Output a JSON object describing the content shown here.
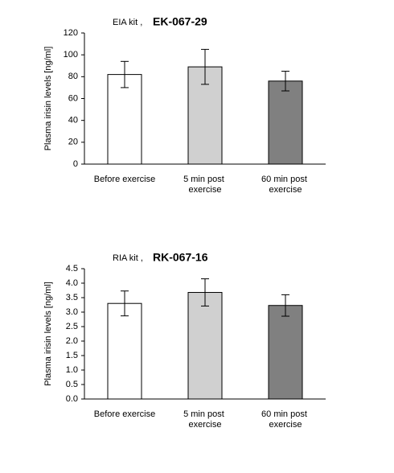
{
  "chart_data": [
    {
      "type": "bar",
      "title": "EIA kit ,",
      "subtitle": "EK-067-29",
      "y_label": "Plasma  irisin levels  [ng/ml]",
      "categories": [
        "Before exercise",
        "5 min post exercise",
        "60 min post exercise"
      ],
      "values": [
        82,
        89,
        76
      ],
      "errors": [
        12,
        16,
        9
      ],
      "colors": [
        "#ffffff",
        "#d0d0d0",
        "#808080"
      ],
      "ylim": [
        0,
        120
      ],
      "yticks": [
        0,
        20,
        40,
        60,
        80,
        100,
        120
      ]
    },
    {
      "type": "bar",
      "title": "RIA kit ,",
      "subtitle": "RK-067-16",
      "y_label": "Plasma  irisin levels  [ng/ml]",
      "categories": [
        "Before exercise",
        "5 min post exercise",
        "60 min post exercise"
      ],
      "values": [
        3.3,
        3.68,
        3.23
      ],
      "errors": [
        0.43,
        0.47,
        0.37
      ],
      "colors": [
        "#ffffff",
        "#d0d0d0",
        "#808080"
      ],
      "ylim": [
        0,
        4.5
      ],
      "yticks": [
        {
          "value": 0,
          "label": "0.0"
        },
        0.5,
        {
          "value": 1,
          "label": "1.0"
        },
        1.5,
        {
          "value": 2,
          "label": "2.0"
        },
        2.5,
        {
          "value": 3,
          "label": "3.0"
        },
        3.5,
        {
          "value": 4,
          "label": "4.0"
        },
        4.5
      ]
    }
  ]
}
